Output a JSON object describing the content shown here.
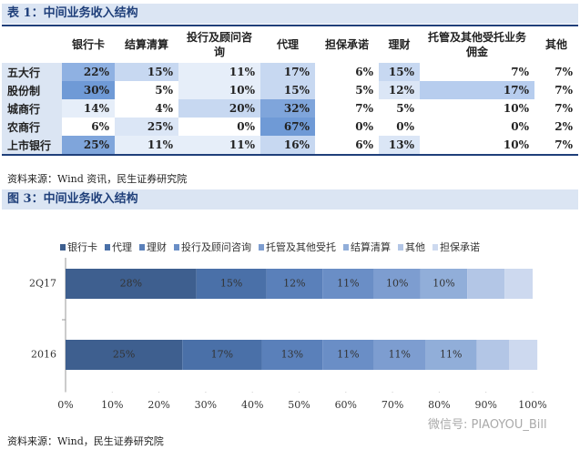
{
  "table": {
    "title": "表 1：中间业务收入结构",
    "columns": [
      "银行卡",
      "结算清算",
      "投行及顾问咨询",
      "代理",
      "担保承诺",
      "理财",
      "托管及其他受托业务佣金",
      "其他"
    ],
    "rows": [
      {
        "label": "五大行",
        "cells": [
          "22%",
          "15%",
          "11%",
          "17%",
          "6%",
          "15%",
          "7%",
          "7%"
        ],
        "colors": [
          "#8fb1e2",
          "#c7d8f1",
          "#e6eef9",
          "#c7d8f1",
          "#ffffff",
          "#c7d8f1",
          "#ffffff",
          "#ffffff"
        ]
      },
      {
        "label": "股份制",
        "cells": [
          "30%",
          "5%",
          "10%",
          "15%",
          "5%",
          "12%",
          "17%",
          "7%"
        ],
        "colors": [
          "#6f9ad6",
          "#ffffff",
          "#e6eef9",
          "#c7d8f1",
          "#ffffff",
          "#dbe6f6",
          "#b7cdee",
          "#ffffff"
        ]
      },
      {
        "label": "城商行",
        "cells": [
          "14%",
          "4%",
          "20%",
          "32%",
          "7%",
          "5%",
          "10%",
          "7%"
        ],
        "colors": [
          "#e6eef9",
          "#ffffff",
          "#c7d8f1",
          "#7fa5db",
          "#ffffff",
          "#ffffff",
          "#ffffff",
          "#ffffff"
        ]
      },
      {
        "label": "农商行",
        "cells": [
          "6%",
          "25%",
          "0%",
          "67%",
          "0%",
          "0%",
          "0%",
          "2%"
        ],
        "colors": [
          "#ffffff",
          "#dbe6f6",
          "#ffffff",
          "#6f9ad6",
          "#ffffff",
          "#ffffff",
          "#ffffff",
          "#ffffff"
        ]
      },
      {
        "label": "上市银行",
        "cells": [
          "25%",
          "11%",
          "11%",
          "16%",
          "6%",
          "13%",
          "10%",
          "7%"
        ],
        "colors": [
          "#7fa5db",
          "#e6eef9",
          "#e6eef9",
          "#c7d8f1",
          "#ffffff",
          "#dbe6f6",
          "#ffffff",
          "#ffffff"
        ]
      }
    ],
    "source": "资料来源：Wind 资讯，民生证券研究院"
  },
  "figure": {
    "title": "图 3：中间业务收入结构",
    "source": "资料来源：Wind，民生证券研究院"
  },
  "chart_data": {
    "type": "stacked-barh",
    "categories": [
      "2Q17",
      "2016"
    ],
    "series": [
      {
        "name": "银行卡",
        "color": "#3e5f8f",
        "values": [
          28,
          25
        ],
        "value_labels": [
          "28%",
          "25%"
        ]
      },
      {
        "name": "代理",
        "color": "#4a70a8",
        "values": [
          15,
          17
        ],
        "value_labels": [
          "15%",
          "17%"
        ]
      },
      {
        "name": "理财",
        "color": "#5a80ba",
        "values": [
          12,
          13
        ],
        "value_labels": [
          "12%",
          "13%"
        ]
      },
      {
        "name": "投行及顾问咨询",
        "color": "#6a8ec6",
        "values": [
          11,
          11
        ],
        "value_labels": [
          "11%",
          "11%"
        ]
      },
      {
        "name": "托管及其他受托",
        "color": "#7d9dd0",
        "values": [
          10,
          11
        ],
        "value_labels": [
          "10%",
          "11%"
        ]
      },
      {
        "name": "结算清算",
        "color": "#91aed9",
        "values": [
          10,
          11
        ],
        "value_labels": [
          "10%",
          "11%"
        ]
      },
      {
        "name": "其他",
        "color": "#b3c6e6",
        "values": [
          8,
          7
        ],
        "value_labels": [
          null,
          null
        ]
      },
      {
        "name": "担保承诺",
        "color": "#cdd9ef",
        "values": [
          6,
          6
        ],
        "value_labels": [
          null,
          null
        ]
      }
    ],
    "xlim": [
      0,
      100
    ],
    "xticks": [
      {
        "value": 0,
        "label": "0%"
      },
      {
        "value": 10,
        "label": "10%"
      },
      {
        "value": 20,
        "label": "20%"
      },
      {
        "value": 30,
        "label": "30%"
      },
      {
        "value": 40,
        "label": "40%"
      },
      {
        "value": 50,
        "label": "50%"
      },
      {
        "value": 60,
        "label": "60%"
      },
      {
        "value": 70,
        "label": "70%"
      },
      {
        "value": 80,
        "label": "80%"
      },
      {
        "value": 90,
        "label": "90%"
      },
      {
        "value": 100,
        "label": "100%"
      }
    ]
  },
  "watermark": "微信号: PIAOYOU_Bill"
}
